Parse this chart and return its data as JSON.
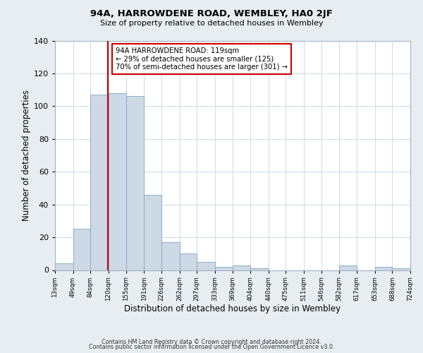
{
  "title": "94A, HARROWDENE ROAD, WEMBLEY, HA0 2JF",
  "subtitle": "Size of property relative to detached houses in Wembley",
  "xlabel": "Distribution of detached houses by size in Wembley",
  "ylabel": "Number of detached properties",
  "bin_edges": [
    13,
    49,
    84,
    120,
    155,
    191,
    226,
    262,
    297,
    333,
    369,
    404,
    440,
    475,
    511,
    546,
    582,
    617,
    653,
    688,
    724
  ],
  "counts": [
    4,
    25,
    107,
    108,
    106,
    46,
    17,
    10,
    5,
    2,
    3,
    1,
    0,
    0,
    0,
    0,
    3,
    0,
    2,
    1
  ],
  "bar_color": "#cdd9e5",
  "bar_edgecolor": "#7aaac8",
  "vline_x": 119,
  "vline_color": "#cc0000",
  "annotation_text": "94A HARROWDENE ROAD: 119sqm\n← 29% of detached houses are smaller (125)\n70% of semi-detached houses are larger (301) →",
  "annotation_box_edgecolor": "#cc0000",
  "annotation_box_facecolor": "#ffffff",
  "ylim": [
    0,
    140
  ],
  "yticks": [
    0,
    20,
    40,
    60,
    80,
    100,
    120,
    140
  ],
  "tick_labels": [
    "13sqm",
    "49sqm",
    "84sqm",
    "120sqm",
    "155sqm",
    "191sqm",
    "226sqm",
    "262sqm",
    "297sqm",
    "333sqm",
    "369sqm",
    "404sqm",
    "440sqm",
    "475sqm",
    "511sqm",
    "546sqm",
    "582sqm",
    "617sqm",
    "653sqm",
    "688sqm",
    "724sqm"
  ],
  "footer1": "Contains HM Land Registry data © Crown copyright and database right 2024.",
  "footer2": "Contains public sector information licensed under the Open Government Licence v3.0.",
  "bg_color": "#e8edf2",
  "plot_bg_color": "#ffffff",
  "grid_color": "#c8d4de"
}
